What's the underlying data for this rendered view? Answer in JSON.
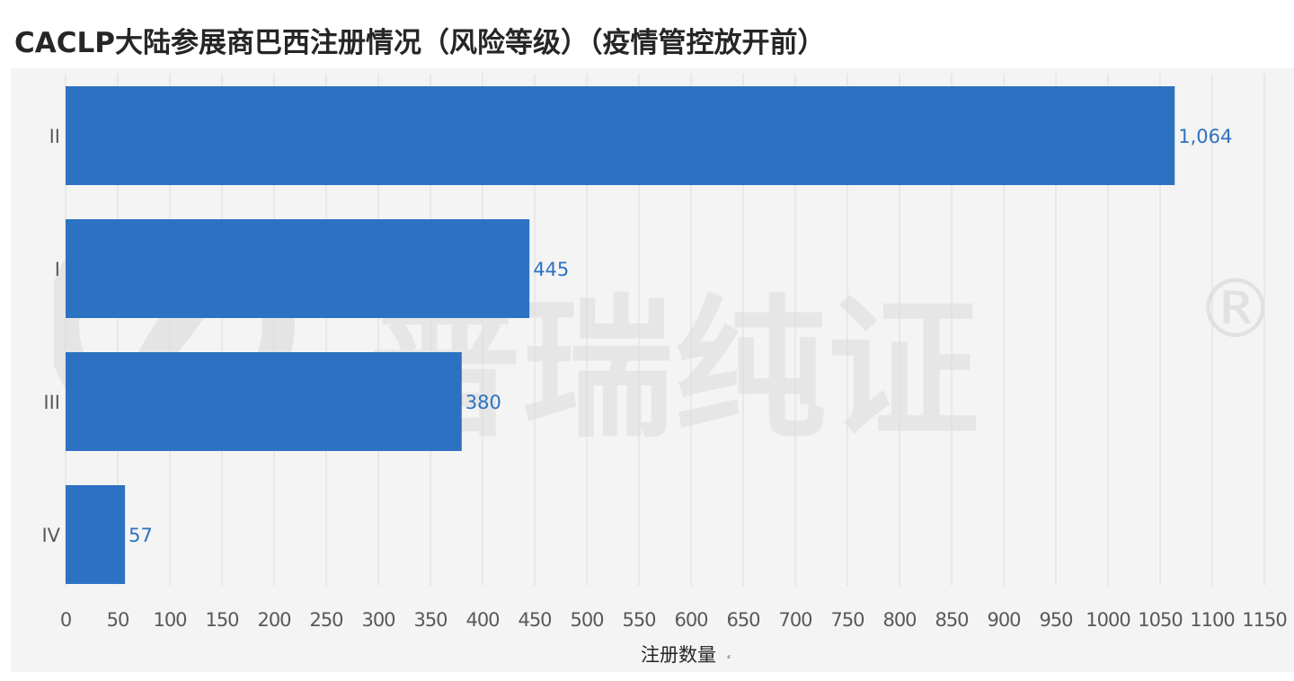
{
  "title": "CACLP大陆参展商巴西注册情况（风险等级）（疫情管控放开前）",
  "colors": {
    "bar": "#2d72c2",
    "label": "#2d72c2",
    "grid": "#dcdcdc",
    "background": "#f4f4f4",
    "axis_text": "#595959"
  },
  "watermark": {
    "text": "普瑞纯证",
    "symbol": "®"
  },
  "chart_data": {
    "type": "bar",
    "orientation": "horizontal",
    "categories": [
      "II",
      "I",
      "III",
      "IV"
    ],
    "values": [
      1064,
      445,
      380,
      57
    ],
    "value_labels": [
      "1,064",
      "445",
      "380",
      "57"
    ],
    "xlabel": "注册数量",
    "xlabel_suffix": "⸗",
    "xlim": [
      0,
      1150
    ],
    "x_ticks": [
      0,
      50,
      100,
      150,
      200,
      250,
      300,
      350,
      400,
      450,
      500,
      550,
      600,
      650,
      700,
      750,
      800,
      850,
      900,
      950,
      1000,
      1050,
      1100,
      1150
    ],
    "grid": true,
    "legend": "none"
  }
}
